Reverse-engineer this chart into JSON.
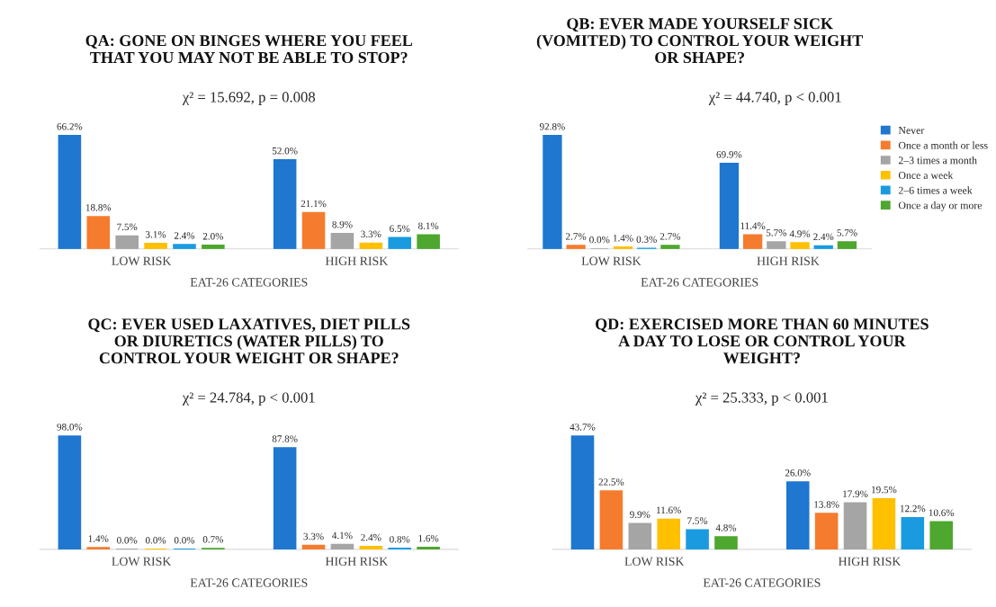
{
  "chart_data": [
    {
      "type": "bar",
      "title": "QA: GONE ON BINGES WHERE YOU FEEL\nTHAT YOU MAY NOT BE ABLE TO STOP?",
      "subtitle": "χ² = 15.692, p = 0.008",
      "xlabel": "EAT-26 CATEGORIES",
      "categories": [
        "LOW RISK",
        "HIGH RISK"
      ],
      "legend": false,
      "series": [
        {
          "color": "#1f77d0",
          "values": [
            66.2,
            52.0
          ],
          "value_labels": [
            "66.2%",
            "52.0%"
          ]
        },
        {
          "color": "#f57c2e",
          "values": [
            18.8,
            21.1
          ],
          "value_labels": [
            "18.8%",
            "21.1%"
          ]
        },
        {
          "color": "#a5a5a5",
          "values": [
            7.5,
            8.9
          ],
          "value_labels": [
            "7.5%",
            "8.9%"
          ]
        },
        {
          "color": "#ffc000",
          "values": [
            3.1,
            3.3
          ],
          "value_labels": [
            "3.1%",
            "3.3%"
          ]
        },
        {
          "color": "#1a9be0",
          "values": [
            2.4,
            6.5
          ],
          "value_labels": [
            "2.4%",
            "6.5%"
          ]
        },
        {
          "color": "#4ea72e",
          "values": [
            2.0,
            8.1
          ],
          "value_labels": [
            "2.0%",
            "8.1%"
          ]
        }
      ]
    },
    {
      "type": "bar",
      "title": "QB: EVER MADE YOURSELF SICK\n(VOMITED) TO CONTROL YOUR WEIGHT\nOR SHAPE?",
      "subtitle": "χ² = 44.740, p < 0.001",
      "xlabel": "EAT-26 CATEGORIES",
      "categories": [
        "LOW RISK",
        "HIGH RISK"
      ],
      "legend": "right",
      "series": [
        {
          "name": "Never",
          "color": "#1f77d0",
          "values": [
            92.8,
            69.9
          ],
          "value_labels": [
            "92.8%",
            "69.9%"
          ]
        },
        {
          "name": "Once a month or less",
          "color": "#f57c2e",
          "values": [
            2.7,
            11.4
          ],
          "value_labels": [
            "2.7%",
            "11.4%"
          ]
        },
        {
          "name": "2–3 times a month",
          "color": "#a5a5a5",
          "values": [
            0.0,
            5.7
          ],
          "value_labels": [
            "0.0%",
            "5.7%"
          ]
        },
        {
          "name": "Once a week",
          "color": "#ffc000",
          "values": [
            1.4,
            4.9
          ],
          "value_labels": [
            "1.4%",
            "4.9%"
          ]
        },
        {
          "name": "2–6 times a week",
          "color": "#1a9be0",
          "values": [
            0.3,
            2.4
          ],
          "value_labels": [
            "0.3%",
            "2.4%"
          ]
        },
        {
          "name": "Once a day or more",
          "color": "#4ea72e",
          "values": [
            2.7,
            5.7
          ],
          "value_labels": [
            "2.7%",
            "5.7%"
          ]
        }
      ]
    },
    {
      "type": "bar",
      "title": "QC: EVER USED LAXATIVES, DIET PILLS\nOR DIURETICS (WATER PILLS) TO\nCONTROL YOUR WEIGHT OR SHAPE?",
      "subtitle": "χ² = 24.784, p < 0.001",
      "xlabel": "EAT-26 CATEGORIES",
      "categories": [
        "LOW RISK",
        "HIGH RISK"
      ],
      "legend": false,
      "series": [
        {
          "color": "#1f77d0",
          "values": [
            98.0,
            87.8
          ],
          "value_labels": [
            "98.0%",
            "87.8%"
          ]
        },
        {
          "color": "#f57c2e",
          "values": [
            1.4,
            3.3
          ],
          "value_labels": [
            "1.4%",
            "3.3%"
          ]
        },
        {
          "color": "#a5a5a5",
          "values": [
            0.0,
            4.1
          ],
          "value_labels": [
            "0.0%",
            "4.1%"
          ]
        },
        {
          "color": "#ffc000",
          "values": [
            0.0,
            2.4
          ],
          "value_labels": [
            "0.0%",
            "2.4%"
          ]
        },
        {
          "color": "#1a9be0",
          "values": [
            0.0,
            0.8
          ],
          "value_labels": [
            "0.0%",
            "0.8%"
          ]
        },
        {
          "color": "#4ea72e",
          "values": [
            0.7,
            1.6
          ],
          "value_labels": [
            "0.7%",
            "1.6%"
          ]
        }
      ]
    },
    {
      "type": "bar",
      "title": "QD: EXERCISED MORE THAN 60 MINUTES\nA DAY TO LOSE OR CONTROL YOUR\nWEIGHT?",
      "subtitle": "χ² = 25.333, p < 0.001",
      "xlabel": "EAT-26 CATEGORIES",
      "categories": [
        "LOW RISK",
        "HIGH RISK"
      ],
      "legend": false,
      "series": [
        {
          "color": "#1f77d0",
          "values": [
            43.7,
            26.0
          ],
          "value_labels": [
            "43.7%",
            "26.0%"
          ]
        },
        {
          "color": "#f57c2e",
          "values": [
            22.5,
            13.8
          ],
          "value_labels": [
            "22.5%",
            "13.8%"
          ]
        },
        {
          "color": "#a5a5a5",
          "values": [
            9.9,
            17.9
          ],
          "value_labels": [
            "9.9%",
            "17.9%"
          ]
        },
        {
          "color": "#ffc000",
          "values": [
            11.6,
            19.5
          ],
          "value_labels": [
            "11.6%",
            "19.5%"
          ]
        },
        {
          "color": "#1a9be0",
          "values": [
            7.5,
            12.2
          ],
          "value_labels": [
            "7.5%",
            "12.2%"
          ]
        },
        {
          "color": "#4ea72e",
          "values": [
            4.8,
            10.6
          ],
          "value_labels": [
            "4.8%",
            "10.6%"
          ]
        }
      ]
    }
  ]
}
